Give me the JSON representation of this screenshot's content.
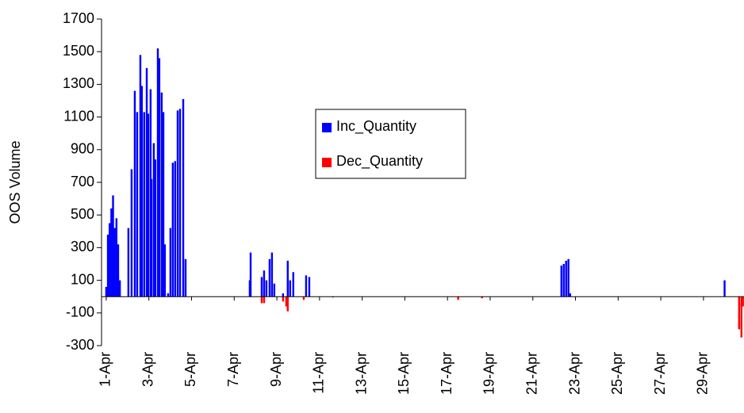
{
  "chart_data": {
    "type": "bar",
    "y_label": "OOS Volume",
    "x": [
      1.0,
      1.08,
      1.16,
      1.24,
      1.32,
      1.4,
      1.48,
      1.56,
      1.64,
      2.04,
      2.19,
      2.34,
      2.45,
      2.6,
      2.67,
      2.78,
      2.9,
      2.97,
      3.08,
      3.12,
      3.23,
      3.3,
      3.42,
      3.49,
      3.6,
      3.68,
      3.75,
      3.9,
      4.01,
      4.12,
      4.23,
      4.35,
      4.46,
      4.61,
      4.72,
      7.73,
      7.77,
      8.29,
      8.4,
      8.51,
      8.66,
      8.77,
      8.88,
      9.29,
      9.44,
      9.51,
      9.62,
      9.77,
      10.26,
      10.37,
      10.52,
      11.63,
      17.5,
      18.62,
      22.34,
      22.45,
      22.56,
      22.67,
      22.75,
      29.99,
      30.67,
      30.78,
      30.85
    ],
    "series": [
      {
        "name": "Inc_Quantity",
        "color": "#0000ff",
        "values": [
          60,
          380,
          450,
          540,
          620,
          420,
          480,
          320,
          100,
          420,
          780,
          1260,
          1130,
          1480,
          1290,
          1130,
          1400,
          1120,
          1270,
          720,
          940,
          840,
          1520,
          1460,
          1250,
          1130,
          320,
          20,
          420,
          820,
          830,
          1140,
          1150,
          1210,
          230,
          100,
          270,
          120,
          160,
          100,
          230,
          270,
          80,
          20,
          null,
          220,
          100,
          150,
          null,
          130,
          120,
          null,
          null,
          null,
          190,
          200,
          220,
          230,
          20,
          100,
          null,
          null,
          null
        ]
      },
      {
        "name": "Dec_Quantity",
        "color": "#ff0000",
        "values": [
          null,
          null,
          null,
          null,
          null,
          null,
          null,
          null,
          null,
          null,
          null,
          null,
          null,
          null,
          null,
          null,
          null,
          null,
          null,
          null,
          null,
          null,
          null,
          null,
          null,
          null,
          null,
          null,
          null,
          null,
          null,
          null,
          null,
          null,
          null,
          null,
          null,
          -40,
          -40,
          null,
          null,
          null,
          null,
          -30,
          -60,
          -90,
          null,
          null,
          -20,
          null,
          null,
          -5,
          -20,
          -10,
          null,
          null,
          null,
          null,
          null,
          null,
          -200,
          -250,
          -60
        ]
      }
    ],
    "xlim": [
      0.78,
      30.9
    ],
    "xticks": [
      {
        "value": 1,
        "label": "1-Apr"
      },
      {
        "value": 3,
        "label": "3-Apr"
      },
      {
        "value": 5,
        "label": "5-Apr"
      },
      {
        "value": 7,
        "label": "7-Apr"
      },
      {
        "value": 9,
        "label": "9-Apr"
      },
      {
        "value": 11,
        "label": "11-Apr"
      },
      {
        "value": 13,
        "label": "13-Apr"
      },
      {
        "value": 15,
        "label": "15-Apr"
      },
      {
        "value": 17,
        "label": "17-Apr"
      },
      {
        "value": 19,
        "label": "19-Apr"
      },
      {
        "value": 21,
        "label": "21-Apr"
      },
      {
        "value": 23,
        "label": "23-Apr"
      },
      {
        "value": 25,
        "label": "25-Apr"
      },
      {
        "value": 27,
        "label": "27-Apr"
      },
      {
        "value": 29,
        "label": "29-Apr"
      }
    ],
    "ylim": [
      -300,
      1700
    ],
    "yticks": [
      -300,
      -100,
      100,
      300,
      500,
      700,
      900,
      1100,
      1300,
      1500,
      1700
    ]
  }
}
